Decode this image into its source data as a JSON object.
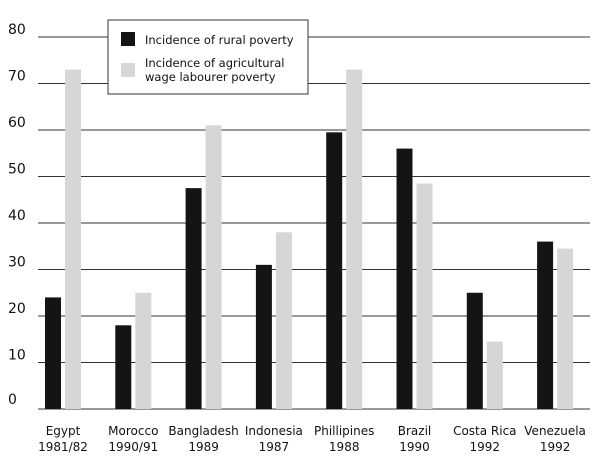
{
  "chart_data": {
    "type": "bar",
    "categories": [
      [
        "Egypt",
        "1981/82"
      ],
      [
        "Morocco",
        "1990/91"
      ],
      [
        "Bangladesh",
        "1989"
      ],
      [
        "Indonesia",
        "1987"
      ],
      [
        "Phillipines",
        "1988"
      ],
      [
        "Brazil",
        "1990"
      ],
      [
        "Costa Rica",
        "1992"
      ],
      [
        "Venezuela",
        "1992"
      ]
    ],
    "series": [
      {
        "name": "Incidence of rural poverty",
        "color": "#141414",
        "values": [
          24,
          18,
          47.5,
          31,
          59.5,
          56,
          25,
          36
        ]
      },
      {
        "name": [
          "Incidence of agricultural",
          "wage labourer poverty"
        ],
        "color": "#d6d6d6",
        "values": [
          73,
          25,
          61,
          38,
          73,
          48.5,
          14.5,
          34.5
        ]
      }
    ],
    "yticks": [
      "0",
      "10",
      "20",
      "30",
      "40",
      "50",
      "60",
      "70",
      "80"
    ],
    "ylim": [
      0,
      80
    ],
    "grid": true,
    "legend": "top-center"
  }
}
